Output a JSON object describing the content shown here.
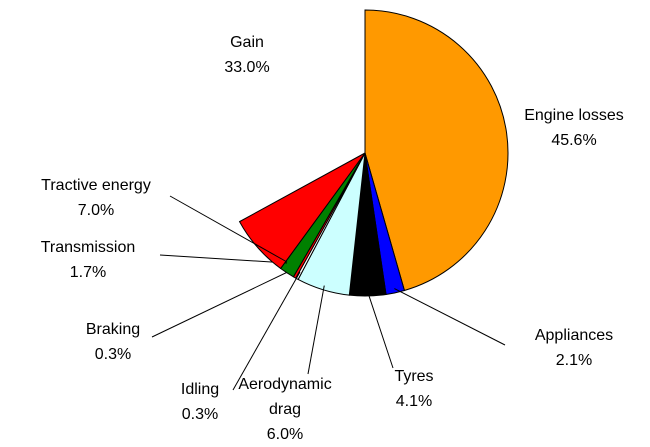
{
  "chart_data": {
    "type": "pie",
    "categories": [
      "Engine losses",
      "Appliances",
      "Tyres",
      "Aerodynamic drag",
      "Idling",
      "Braking",
      "Transmission",
      "Tractive energy",
      "Gain"
    ],
    "values": [
      45.6,
      2.1,
      4.1,
      6.0,
      0.3,
      0.3,
      1.7,
      7.0,
      33.0
    ],
    "value_labels": [
      "45.6%",
      "2.1%",
      "4.1%",
      "6.0%",
      "0.3%",
      "0.3%",
      "1.7%",
      "7.0%",
      "33.0%"
    ],
    "colors": [
      "#ff9900",
      "#0000ff",
      "#000000",
      "#ccffff",
      "#ffffff",
      "#ff0000",
      "#008000",
      "#ff0000",
      "none"
    ]
  }
}
